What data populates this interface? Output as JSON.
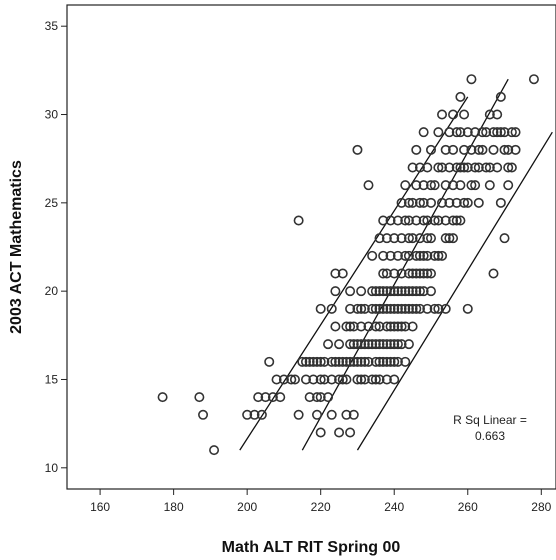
{
  "chart_data": {
    "type": "scatter",
    "title": "",
    "xlabel": "Math ALT RIT Spring 00",
    "ylabel": "2003 ACT Mathematics",
    "xlim": [
      151,
      284
    ],
    "ylim": [
      8.8,
      36.2
    ],
    "xticks": [
      160,
      180,
      200,
      220,
      240,
      260,
      280
    ],
    "yticks": [
      10,
      15,
      20,
      25,
      30,
      35
    ],
    "grid": false,
    "legend": "none",
    "marker_color": "#333333",
    "annotation": {
      "line1": "R Sq Linear =",
      "line2": "0.663"
    },
    "fit_lines": [
      {
        "x": [
          198,
          260
        ],
        "y": [
          11,
          31
        ]
      },
      {
        "x": [
          215,
          271
        ],
        "y": [
          11,
          32
        ]
      },
      {
        "x": [
          230,
          283
        ],
        "y": [
          11,
          29
        ]
      }
    ],
    "points": [
      [
        177,
        14
      ],
      [
        187,
        14
      ],
      [
        188,
        13
      ],
      [
        191,
        11
      ],
      [
        200,
        13
      ],
      [
        202,
        13
      ],
      [
        203,
        14
      ],
      [
        204,
        13
      ],
      [
        205,
        14
      ],
      [
        206,
        16
      ],
      [
        207,
        14
      ],
      [
        208,
        15
      ],
      [
        209,
        14
      ],
      [
        210,
        15
      ],
      [
        212,
        15
      ],
      [
        213,
        15
      ],
      [
        214,
        13
      ],
      [
        214,
        24
      ],
      [
        215,
        16
      ],
      [
        216,
        16
      ],
      [
        216,
        15
      ],
      [
        217,
        16
      ],
      [
        217,
        14
      ],
      [
        218,
        15
      ],
      [
        218,
        16
      ],
      [
        219,
        16
      ],
      [
        219,
        14
      ],
      [
        219,
        13
      ],
      [
        220,
        12
      ],
      [
        220,
        14
      ],
      [
        220,
        15
      ],
      [
        220,
        16
      ],
      [
        220,
        19
      ],
      [
        221,
        15
      ],
      [
        221,
        16
      ],
      [
        222,
        17
      ],
      [
        222,
        14
      ],
      [
        223,
        16
      ],
      [
        223,
        15
      ],
      [
        223,
        13
      ],
      [
        223,
        19
      ],
      [
        224,
        16
      ],
      [
        224,
        18
      ],
      [
        224,
        20
      ],
      [
        224,
        21
      ],
      [
        225,
        15
      ],
      [
        225,
        16
      ],
      [
        225,
        12
      ],
      [
        225,
        17
      ],
      [
        226,
        21
      ],
      [
        226,
        15
      ],
      [
        226,
        16
      ],
      [
        227,
        16
      ],
      [
        227,
        18
      ],
      [
        227,
        13
      ],
      [
        227,
        15
      ],
      [
        228,
        16
      ],
      [
        228,
        17
      ],
      [
        228,
        18
      ],
      [
        228,
        19
      ],
      [
        228,
        20
      ],
      [
        228,
        12
      ],
      [
        229,
        16
      ],
      [
        229,
        17
      ],
      [
        229,
        18
      ],
      [
        229,
        13
      ],
      [
        230,
        16
      ],
      [
        230,
        17
      ],
      [
        230,
        19
      ],
      [
        230,
        15
      ],
      [
        230,
        28
      ],
      [
        231,
        17
      ],
      [
        231,
        18
      ],
      [
        231,
        19
      ],
      [
        231,
        20
      ],
      [
        231,
        16
      ],
      [
        231,
        15
      ],
      [
        232,
        17
      ],
      [
        232,
        16
      ],
      [
        232,
        19
      ],
      [
        232,
        15
      ],
      [
        233,
        17
      ],
      [
        233,
        26
      ],
      [
        233,
        18
      ],
      [
        233,
        16
      ],
      [
        234,
        15
      ],
      [
        234,
        17
      ],
      [
        234,
        19
      ],
      [
        234,
        20
      ],
      [
        234,
        22
      ],
      [
        235,
        16
      ],
      [
        235,
        17
      ],
      [
        235,
        18
      ],
      [
        235,
        20
      ],
      [
        235,
        15
      ],
      [
        235,
        19
      ],
      [
        236,
        16
      ],
      [
        236,
        17
      ],
      [
        236,
        18
      ],
      [
        236,
        19
      ],
      [
        236,
        20
      ],
      [
        236,
        23
      ],
      [
        236,
        15
      ],
      [
        237,
        16
      ],
      [
        237,
        17
      ],
      [
        237,
        19
      ],
      [
        237,
        20
      ],
      [
        237,
        21
      ],
      [
        237,
        22
      ],
      [
        237,
        24
      ],
      [
        238,
        16
      ],
      [
        238,
        17
      ],
      [
        238,
        18
      ],
      [
        238,
        19
      ],
      [
        238,
        20
      ],
      [
        238,
        21
      ],
      [
        238,
        23
      ],
      [
        238,
        15
      ],
      [
        239,
        16
      ],
      [
        239,
        17
      ],
      [
        239,
        18
      ],
      [
        239,
        19
      ],
      [
        239,
        20
      ],
      [
        239,
        22
      ],
      [
        239,
        24
      ],
      [
        240,
        16
      ],
      [
        240,
        17
      ],
      [
        240,
        18
      ],
      [
        240,
        19
      ],
      [
        240,
        20
      ],
      [
        240,
        21
      ],
      [
        240,
        23
      ],
      [
        240,
        15
      ],
      [
        241,
        17
      ],
      [
        241,
        18
      ],
      [
        241,
        19
      ],
      [
        241,
        20
      ],
      [
        241,
        22
      ],
      [
        241,
        24
      ],
      [
        241,
        16
      ],
      [
        242,
        18
      ],
      [
        242,
        19
      ],
      [
        242,
        20
      ],
      [
        242,
        21
      ],
      [
        242,
        23
      ],
      [
        242,
        25
      ],
      [
        242,
        17
      ],
      [
        243,
        18
      ],
      [
        243,
        19
      ],
      [
        243,
        20
      ],
      [
        243,
        22
      ],
      [
        243,
        24
      ],
      [
        243,
        26
      ],
      [
        243,
        16
      ],
      [
        244,
        19
      ],
      [
        244,
        20
      ],
      [
        244,
        21
      ],
      [
        244,
        22
      ],
      [
        244,
        23
      ],
      [
        244,
        24
      ],
      [
        244,
        25
      ],
      [
        244,
        17
      ],
      [
        245,
        19
      ],
      [
        245,
        20
      ],
      [
        245,
        21
      ],
      [
        245,
        23
      ],
      [
        245,
        25
      ],
      [
        245,
        27
      ],
      [
        245,
        18
      ],
      [
        246,
        20
      ],
      [
        246,
        21
      ],
      [
        246,
        22
      ],
      [
        246,
        24
      ],
      [
        246,
        26
      ],
      [
        246,
        19
      ],
      [
        246,
        28
      ],
      [
        247,
        20
      ],
      [
        247,
        21
      ],
      [
        247,
        22
      ],
      [
        247,
        23
      ],
      [
        247,
        25
      ],
      [
        247,
        27
      ],
      [
        247,
        19
      ],
      [
        248,
        21
      ],
      [
        248,
        22
      ],
      [
        248,
        24
      ],
      [
        248,
        26
      ],
      [
        248,
        20
      ],
      [
        248,
        25
      ],
      [
        248,
        29
      ],
      [
        249,
        21
      ],
      [
        249,
        22
      ],
      [
        249,
        23
      ],
      [
        249,
        24
      ],
      [
        249,
        27
      ],
      [
        249,
        19
      ],
      [
        250,
        21
      ],
      [
        250,
        23
      ],
      [
        250,
        25
      ],
      [
        250,
        26
      ],
      [
        250,
        28
      ],
      [
        250,
        20
      ],
      [
        251,
        22
      ],
      [
        251,
        24
      ],
      [
        251,
        26
      ],
      [
        251,
        19
      ],
      [
        252,
        22
      ],
      [
        252,
        24
      ],
      [
        252,
        27
      ],
      [
        252,
        29
      ],
      [
        252,
        19
      ],
      [
        253,
        22
      ],
      [
        253,
        25
      ],
      [
        253,
        27
      ],
      [
        253,
        30
      ],
      [
        254,
        23
      ],
      [
        254,
        24
      ],
      [
        254,
        26
      ],
      [
        254,
        28
      ],
      [
        254,
        19
      ],
      [
        255,
        23
      ],
      [
        255,
        25
      ],
      [
        255,
        27
      ],
      [
        255,
        29
      ],
      [
        256,
        23
      ],
      [
        256,
        24
      ],
      [
        256,
        26
      ],
      [
        256,
        28
      ],
      [
        256,
        30
      ],
      [
        257,
        24
      ],
      [
        257,
        25
      ],
      [
        257,
        27
      ],
      [
        257,
        29
      ],
      [
        258,
        24
      ],
      [
        258,
        26
      ],
      [
        258,
        27
      ],
      [
        258,
        29
      ],
      [
        258,
        31
      ],
      [
        259,
        25
      ],
      [
        259,
        27
      ],
      [
        259,
        28
      ],
      [
        259,
        30
      ],
      [
        260,
        25
      ],
      [
        260,
        27
      ],
      [
        260,
        29
      ],
      [
        260,
        19
      ],
      [
        261,
        26
      ],
      [
        261,
        28
      ],
      [
        261,
        32
      ],
      [
        262,
        26
      ],
      [
        262,
        27
      ],
      [
        262,
        29
      ],
      [
        263,
        25
      ],
      [
        263,
        27
      ],
      [
        263,
        28
      ],
      [
        264,
        28
      ],
      [
        264,
        29
      ],
      [
        265,
        27
      ],
      [
        265,
        29
      ],
      [
        266,
        26
      ],
      [
        266,
        27
      ],
      [
        266,
        30
      ],
      [
        267,
        28
      ],
      [
        267,
        29
      ],
      [
        267,
        21
      ],
      [
        268,
        27
      ],
      [
        268,
        29
      ],
      [
        268,
        30
      ],
      [
        269,
        25
      ],
      [
        269,
        29
      ],
      [
        269,
        31
      ],
      [
        270,
        28
      ],
      [
        270,
        23
      ],
      [
        270,
        29
      ],
      [
        271,
        26
      ],
      [
        271,
        28
      ],
      [
        271,
        27
      ],
      [
        272,
        29
      ],
      [
        272,
        27
      ],
      [
        273,
        28
      ],
      [
        273,
        29
      ],
      [
        278,
        32
      ]
    ]
  }
}
